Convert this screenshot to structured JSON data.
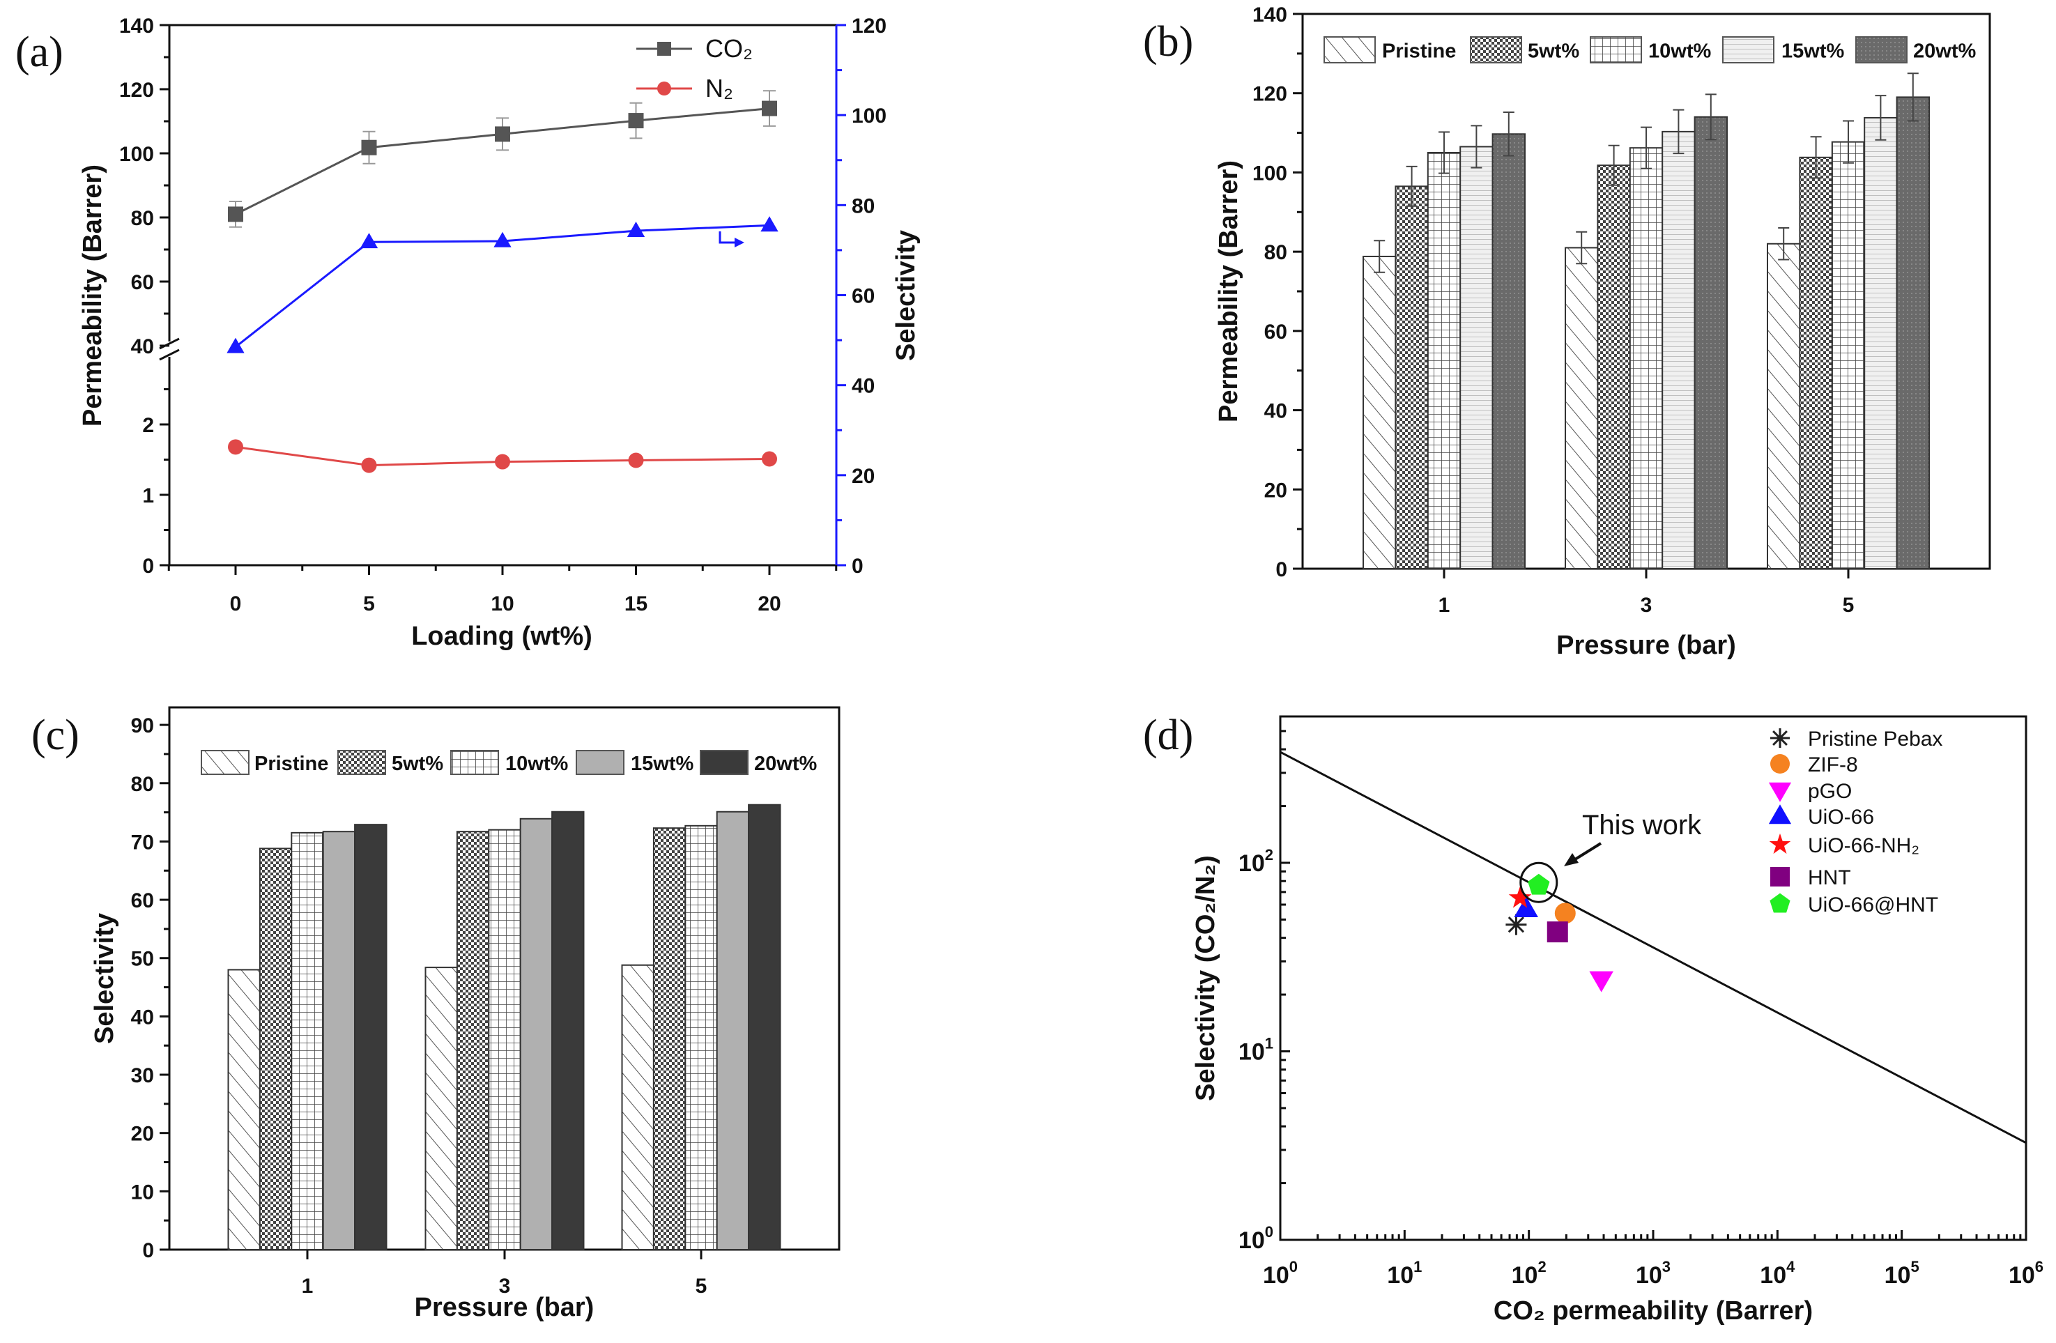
{
  "chart_data": [
    {
      "panel": "(a)",
      "type": "line",
      "xlabel": "Loading (wt%)",
      "ylabel": "Permeability (Barrer)",
      "ylabel_right": "Selectivity",
      "x": [
        0,
        5,
        10,
        15,
        20
      ],
      "xticks": [
        0,
        5,
        10,
        15,
        20
      ],
      "xlim": [
        -2.5,
        22.5
      ],
      "yticks_lower": [
        0,
        1,
        2
      ],
      "yticks_upper": [
        40,
        60,
        80,
        100,
        120,
        140
      ],
      "ylim_lower": [
        0,
        3
      ],
      "ylim_upper": [
        40,
        140
      ],
      "axis_break": true,
      "yticks_right": [
        0,
        20,
        40,
        60,
        80,
        100,
        120
      ],
      "ylim_right": [
        0,
        120
      ],
      "series": [
        {
          "name": "CO₂",
          "axis": "left",
          "marker": "square",
          "color": "#555555",
          "values": [
            81,
            101.8,
            106,
            110.2,
            114
          ],
          "errors": [
            4,
            5,
            5,
            5.5,
            5.5
          ]
        },
        {
          "name": "N₂",
          "axis": "left",
          "marker": "circle",
          "color": "#e04848",
          "values": [
            1.68,
            1.42,
            1.47,
            1.49,
            1.51
          ]
        },
        {
          "name": "Selectivity",
          "axis": "right",
          "marker": "triangle",
          "color": "#1a1aff",
          "values": [
            48.5,
            71.8,
            72,
            74.3,
            75.5
          ]
        }
      ],
      "legend": [
        "CO₂",
        "N₂"
      ],
      "legend_position": "top-right"
    },
    {
      "panel": "(b)",
      "type": "bar",
      "xlabel": "Pressure (bar)",
      "ylabel": "Permeability (Barrer)",
      "categories": [
        "1",
        "3",
        "5"
      ],
      "ylim": [
        0,
        140
      ],
      "yticks": [
        0,
        20,
        40,
        60,
        80,
        100,
        120,
        140
      ],
      "series": [
        {
          "name": "Pristine",
          "values": [
            78.8,
            81,
            82
          ],
          "errors": [
            4,
            4,
            4
          ]
        },
        {
          "name": "5wt%",
          "values": [
            96.5,
            101.8,
            103.8
          ],
          "errors": [
            5,
            5,
            5.2
          ]
        },
        {
          "name": "10wt%",
          "values": [
            105,
            106.2,
            107.7
          ],
          "errors": [
            5.2,
            5.2,
            5.3
          ]
        },
        {
          "name": "15wt%",
          "values": [
            106.5,
            110.3,
            113.8
          ],
          "errors": [
            5.3,
            5.5,
            5.6
          ]
        },
        {
          "name": "20wt%",
          "values": [
            109.7,
            114,
            119
          ],
          "errors": [
            5.5,
            5.7,
            6
          ]
        }
      ],
      "legend_position": "top"
    },
    {
      "panel": "(c)",
      "type": "bar",
      "xlabel": "Pressure (bar)",
      "ylabel": "Selectivity",
      "categories": [
        "1",
        "3",
        "5"
      ],
      "ylim": [
        0,
        93
      ],
      "yticks": [
        0,
        10,
        20,
        30,
        40,
        50,
        60,
        70,
        80,
        90
      ],
      "series": [
        {
          "name": "Pristine",
          "values": [
            48,
            48.4,
            48.8
          ]
        },
        {
          "name": "5wt%",
          "values": [
            68.8,
            71.7,
            72.3
          ]
        },
        {
          "name": "10wt%",
          "values": [
            71.5,
            72,
            72.7
          ]
        },
        {
          "name": "15wt%",
          "values": [
            71.7,
            73.9,
            75.1
          ]
        },
        {
          "name": "20wt%",
          "values": [
            72.9,
            75.1,
            76.3
          ]
        }
      ],
      "legend_position": "top"
    },
    {
      "panel": "(d)",
      "type": "scatter",
      "xlabel": "CO₂ permeability (Barrer)",
      "ylabel": "Selectivity (CO₂/N₂)",
      "xscale": "log",
      "yscale": "log",
      "xlim": [
        1,
        1000000
      ],
      "ylim": [
        1,
        600
      ],
      "xtick_exponents": [
        0,
        1,
        2,
        3,
        4,
        5,
        6
      ],
      "ytick_exponents": [
        0,
        1,
        2
      ],
      "tick_base": "10",
      "upper_bound_line": {
        "x": [
          1,
          1000000
        ],
        "y": [
          387,
          3.27
        ]
      },
      "annotation": "This work",
      "series": [
        {
          "name": "Pristine Pebax",
          "marker": "asterisk",
          "color": "#222222",
          "x": 79,
          "y": 47
        },
        {
          "name": "ZIF-8",
          "marker": "circle",
          "color": "#f58220",
          "x": 196,
          "y": 54
        },
        {
          "name": "pGO",
          "marker": "triangle-down",
          "color": "#ff00ff",
          "x": 383,
          "y": 24
        },
        {
          "name": "UiO-66",
          "marker": "triangle",
          "color": "#1010ff",
          "x": 95,
          "y": 57
        },
        {
          "name": "UiO-66-NH₂",
          "marker": "star",
          "color": "#ff1010",
          "x": 85,
          "y": 65
        },
        {
          "name": "HNT",
          "marker": "square",
          "color": "#800080",
          "x": 170,
          "y": 43
        },
        {
          "name": "UiO-66@HNT",
          "marker": "pentagon",
          "color": "#22ee22",
          "x": 120,
          "y": 76
        }
      ],
      "legend_position": "top-right"
    }
  ]
}
